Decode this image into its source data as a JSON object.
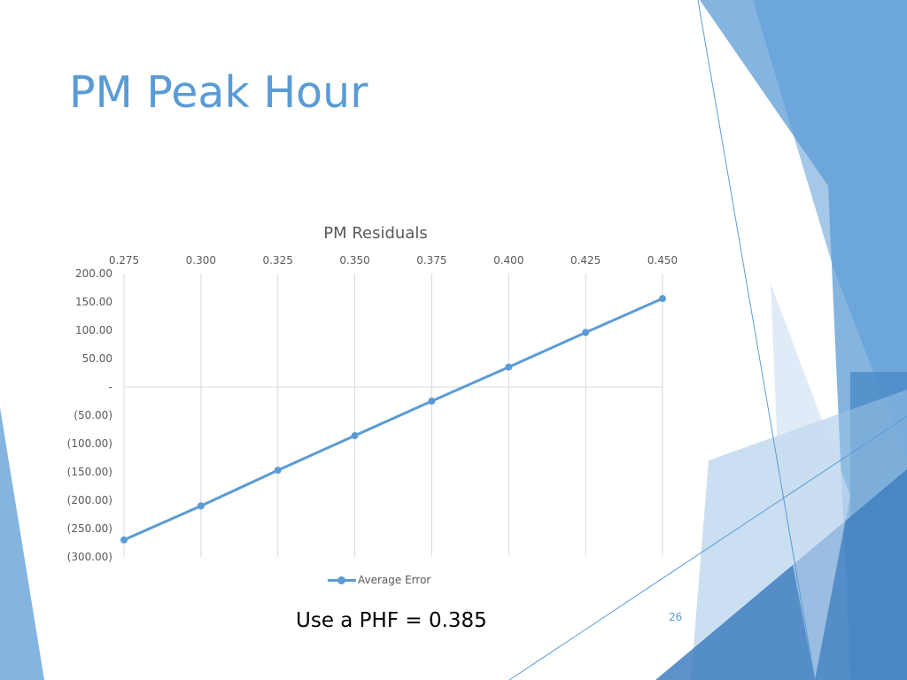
{
  "slide": {
    "title": "PM Peak Hour",
    "note": "Use a PHF = 0.385",
    "page_number": "26",
    "accent_color": "#5b9bd5"
  },
  "chart_data": {
    "type": "line",
    "title": "PM Residuals",
    "xlabel": "",
    "ylabel": "",
    "x": [
      0.275,
      0.3,
      0.325,
      0.35,
      0.375,
      0.4,
      0.425,
      0.45
    ],
    "x_tick_labels": [
      "0.275",
      "0.300",
      "0.325",
      "0.350",
      "0.375",
      "0.400",
      "0.425",
      "0.450"
    ],
    "y_tick_labels": [
      "200.00",
      "150.00",
      "100.00",
      "50.00",
      "-",
      "(50.00)",
      "(100.00)",
      "(150.00)",
      "(200.00)",
      "(250.00)",
      "(300.00)"
    ],
    "ylim": [
      -300,
      200
    ],
    "x_axis_position": "top",
    "grid": "vertical",
    "legend_position": "bottom",
    "series": [
      {
        "name": "Average Error",
        "color": "#5b9bd5",
        "values": [
          -270,
          -210,
          -147,
          -86,
          -25,
          35,
          96,
          156
        ]
      }
    ]
  }
}
